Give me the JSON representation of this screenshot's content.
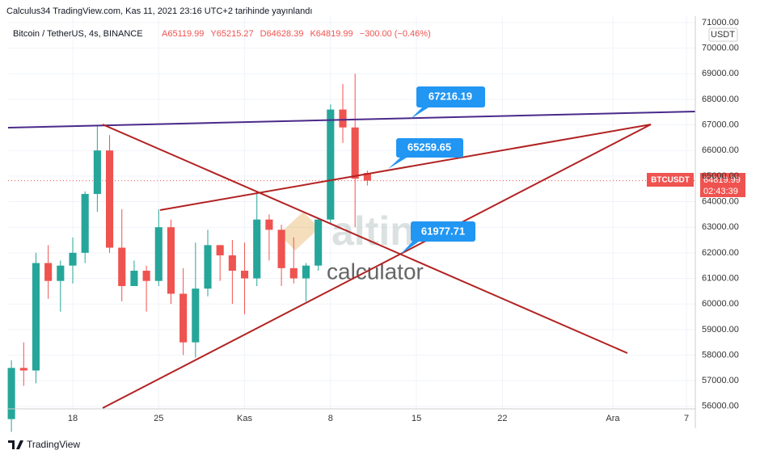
{
  "chart_data": {
    "type": "candlestick",
    "title": "Calculus34 TradingView.com, Kas 11, 2021 23:16 UTC+2 tarihinde yayınlandı",
    "subtitle": "Bitcoin / TetherUS, 4s, BINANCE",
    "ohlc_labels": [
      "A65119.99",
      "Y65215.27",
      "D64628.39",
      "K64819.99",
      "−300.00 (−0.46%)"
    ],
    "currency": "USDT",
    "symbol": "BTCUSDT",
    "last_price": {
      "value": 64819.99,
      "label": "64819.99"
    },
    "countdown": "02:43:39",
    "annotations": [
      "67216.19",
      "65259.65",
      "61977.71"
    ],
    "watermark": [
      "altin",
      "calculator"
    ],
    "footer": "TradingView",
    "x": [
      13,
      14,
      15,
      16,
      17,
      18,
      19,
      20,
      21,
      22,
      23,
      24,
      25,
      26,
      27,
      28,
      29,
      30,
      31,
      32,
      33,
      34,
      35,
      36,
      37,
      38,
      39,
      40,
      41,
      42
    ],
    "open": [
      55500,
      57500,
      57400,
      61600,
      60900,
      61500,
      62000,
      64300,
      66000,
      62200,
      60700,
      61300,
      60900,
      63000,
      60400,
      58500,
      60600,
      62300,
      61900,
      61300,
      61000,
      63300,
      62900,
      61400,
      61000,
      61500,
      63300,
      67600,
      66900,
      65119.99
    ],
    "high": [
      57800,
      58500,
      62000,
      62300,
      61700,
      62600,
      64400,
      67000,
      66600,
      63700,
      61700,
      61500,
      63700,
      63300,
      61400,
      62400,
      62900,
      62300,
      62500,
      62400,
      64300,
      63500,
      63100,
      62600,
      61600,
      63300,
      67800,
      68600,
      69000,
      65215.27
    ],
    "low": [
      55000,
      56800,
      56900,
      60200,
      59700,
      60800,
      61600,
      63600,
      62000,
      60100,
      60700,
      59700,
      60700,
      60000,
      58000,
      57900,
      60300,
      60900,
      60000,
      59600,
      60700,
      61700,
      60700,
      60800,
      60100,
      61300,
      63100,
      66300,
      63000,
      64628.39
    ],
    "close": [
      57500,
      57400,
      61600,
      60900,
      61500,
      62000,
      64300,
      66000,
      62200,
      60700,
      61300,
      60900,
      63000,
      60400,
      58500,
      60600,
      62300,
      61900,
      61300,
      61000,
      63300,
      62900,
      61400,
      61000,
      61500,
      63300,
      67600,
      66900,
      64900,
      64819.99
    ],
    "up_color": "#26a69a",
    "down_color": "#ef5350",
    "xlim": [
      12.73,
      68.72
    ],
    "xticks": [
      18,
      25,
      {
        "value": 32,
        "label": "Kas"
      },
      {
        "value": 39,
        "label": "8"
      },
      {
        "value": 46,
        "label": "15"
      },
      {
        "value": 53,
        "label": "22"
      },
      {
        "value": 62,
        "label": "Ara"
      },
      {
        "value": 68,
        "label": "7"
      }
    ],
    "ylim": [
      55900,
      71250
    ],
    "yticks": [
      {
        "value": 56000,
        "label": "56000.00"
      },
      {
        "value": 57000,
        "label": "57000.00"
      },
      {
        "value": 58000,
        "label": "58000.00"
      },
      {
        "value": 59000,
        "label": "59000.00"
      },
      {
        "value": 60000,
        "label": "60000.00"
      },
      {
        "value": 61000,
        "label": "61000.00"
      },
      {
        "value": 62000,
        "label": "62000.00"
      },
      {
        "value": 63000,
        "label": "63000.00"
      },
      {
        "value": 64000,
        "label": "64000.00"
      },
      {
        "value": 65000,
        "label": "65000.00"
      },
      {
        "value": 66000,
        "label": "66000.00"
      },
      {
        "value": 67000,
        "label": "67000.00"
      },
      {
        "value": 68000,
        "label": "68000.00"
      },
      {
        "value": 69000,
        "label": "69000.00"
      },
      {
        "value": 70000,
        "label": "70000.00"
      },
      {
        "value": 71000,
        "label": "71000.00"
      }
    ],
    "grid": true
  }
}
